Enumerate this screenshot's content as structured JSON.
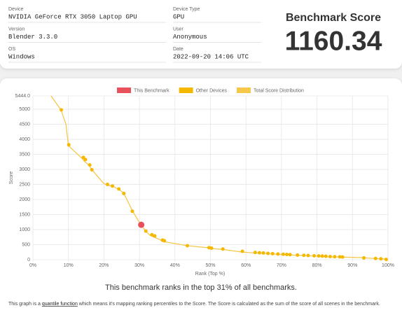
{
  "info": {
    "columns": [
      [
        {
          "label": "Device",
          "value": "NVIDIA GeForce RTX 3050 Laptop GPU"
        },
        {
          "label": "Version",
          "value": "Blender 3.3.0"
        },
        {
          "label": "OS",
          "value": "Windows"
        }
      ],
      [
        {
          "label": "Device Type",
          "value": "GPU"
        },
        {
          "label": "User",
          "value": "Anonymous"
        },
        {
          "label": "Date",
          "value": "2022-09-20 14:06 UTC"
        }
      ]
    ]
  },
  "score": {
    "title": "Benchmark Score",
    "value": 1160.34
  },
  "chart_data": {
    "type": "scatter",
    "xlabel": "Rank (Top %)",
    "ylabel": "Score",
    "grid": true,
    "xlim": [
      0,
      100
    ],
    "ylim": [
      0,
      5444
    ],
    "xticks": [
      {
        "value": 0,
        "label": "0%"
      },
      {
        "value": 10,
        "label": "10%"
      },
      {
        "value": 20,
        "label": "20%"
      },
      {
        "value": 30,
        "label": "30%"
      },
      {
        "value": 40,
        "label": "40%"
      },
      {
        "value": 50,
        "label": "50%"
      },
      {
        "value": 60,
        "label": "60%"
      },
      {
        "value": 70,
        "label": "70%"
      },
      {
        "value": 80,
        "label": "80%"
      },
      {
        "value": 90,
        "label": "90%"
      },
      {
        "value": 100,
        "label": "100%"
      }
    ],
    "yticks": [
      0,
      500,
      1000,
      1500,
      2000,
      2500,
      3000,
      3500,
      4000,
      4500,
      5000,
      {
        "value": 5444,
        "label": "5444.0"
      }
    ],
    "series": [
      {
        "name": "This Benchmark",
        "type": "scatter",
        "color": "#e8505b",
        "x": [
          30.5
        ],
        "values": [
          1160.34
        ]
      },
      {
        "name": "Other Devices",
        "type": "scatter",
        "color": "#f5b800",
        "x": [
          8,
          10.1,
          14.2,
          14.8,
          16,
          16.6,
          21,
          22.4,
          24.2,
          25.6,
          28,
          31.8,
          33.5,
          34.3,
          36.5,
          37,
          43.5,
          49.6,
          50.3,
          53.5,
          59,
          62.6,
          63.8,
          64.9,
          66.2,
          67.5,
          69,
          70.5,
          71.5,
          72.4,
          74.5,
          76.3,
          77.5,
          79.2,
          80.5,
          81.5,
          82.5,
          83.7,
          85,
          86.4,
          87.2,
          93.2,
          96.5,
          98,
          99.5
        ],
        "values": [
          4980,
          3820,
          3400,
          3330,
          3150,
          2990,
          2500,
          2450,
          2350,
          2200,
          1610,
          950,
          830,
          790,
          650,
          630,
          465,
          400,
          385,
          355,
          280,
          240,
          230,
          225,
          210,
          200,
          190,
          180,
          175,
          170,
          155,
          145,
          140,
          130,
          125,
          120,
          115,
          105,
          100,
          95,
          90,
          60,
          40,
          30,
          10
        ]
      },
      {
        "name": "Total Score Distribution",
        "type": "line",
        "color": "#f5c84c",
        "x": [
          5.1,
          7.9,
          9.3,
          10,
          13.8,
          14.4,
          15.8,
          16.4,
          19.9,
          21.3,
          22.5,
          24.3,
          25.6,
          28,
          30.4,
          31.8,
          32.9,
          33.7,
          36.1,
          36.9,
          43.4,
          49.5,
          50.3,
          52.7,
          58.8,
          61.7,
          65,
          68.2,
          71,
          76.1,
          79.9,
          83.4,
          86,
          92.7,
          94.9,
          98.8,
          100
        ],
        "values": [
          5444,
          4980,
          4500,
          3790,
          3370,
          3280,
          3140,
          3020,
          2540,
          2470,
          2440,
          2330,
          2210,
          1630,
          1160,
          950,
          815,
          770,
          650,
          600,
          465,
          395,
          370,
          350,
          255,
          230,
          210,
          185,
          165,
          140,
          120,
          95,
          90,
          70,
          50,
          25,
          5
        ]
      }
    ]
  },
  "summary": "This benchmark ranks in the top 31% of all benchmarks.",
  "footnote": {
    "before": "This graph is a ",
    "link": "quantile function",
    "after": " which means it's mapping ranking percentiles to the Score. The Score is calculated as the sum of the score of all scenes in the benchmark."
  }
}
